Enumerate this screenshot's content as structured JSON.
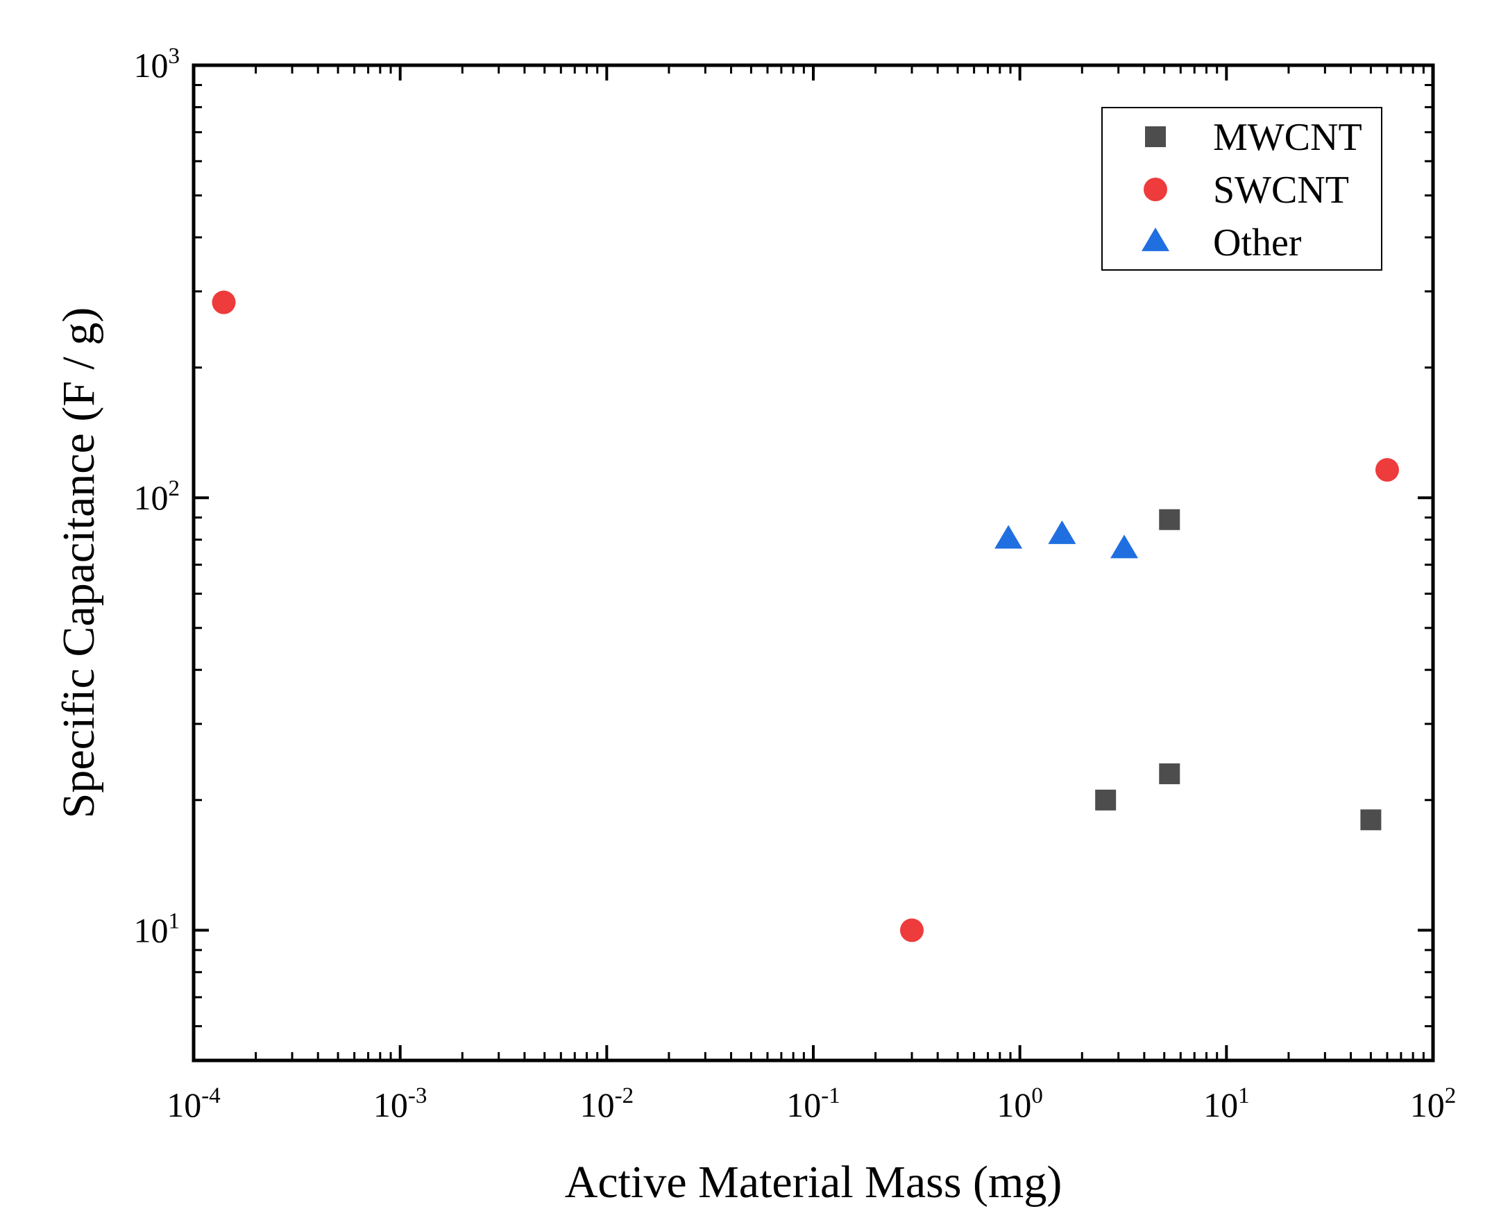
{
  "chart_data": {
    "type": "scatter",
    "title": "",
    "xlabel": "Active Material Mass (mg)",
    "ylabel": "Specific Capacitance (F / g)",
    "xscale": "log",
    "yscale": "log",
    "xlim": [
      0.0001,
      100
    ],
    "ylim": [
      5.0,
      1000
    ],
    "x_ticks": [
      {
        "base": "10",
        "exp": "-4"
      },
      {
        "base": "10",
        "exp": "-3"
      },
      {
        "base": "10",
        "exp": "-2"
      },
      {
        "base": "10",
        "exp": "-1"
      },
      {
        "base": "10",
        "exp": "0"
      },
      {
        "base": "10",
        "exp": "1"
      },
      {
        "base": "10",
        "exp": "2"
      }
    ],
    "y_ticks": [
      {
        "base": "10",
        "exp": "1"
      },
      {
        "base": "10",
        "exp": "2"
      },
      {
        "base": "10",
        "exp": "3"
      }
    ],
    "grid": false,
    "legend_position": "top-right",
    "series": [
      {
        "name": "MWCNT",
        "marker": "square",
        "color": "#4d4d4d",
        "points": [
          {
            "x": 5.3,
            "y": 89
          },
          {
            "x": 2.6,
            "y": 20
          },
          {
            "x": 5.3,
            "y": 23
          },
          {
            "x": 50,
            "y": 18
          }
        ]
      },
      {
        "name": "SWCNT",
        "marker": "circle",
        "color": "#ee3b3b",
        "points": [
          {
            "x": 0.00014,
            "y": 283
          },
          {
            "x": 0.3,
            "y": 10
          },
          {
            "x": 60,
            "y": 116
          }
        ]
      },
      {
        "name": "Other",
        "marker": "triangle",
        "color": "#1f6fe0",
        "points": [
          {
            "x": 0.88,
            "y": 80
          },
          {
            "x": 1.6,
            "y": 82
          },
          {
            "x": 3.2,
            "y": 76
          }
        ]
      }
    ]
  }
}
